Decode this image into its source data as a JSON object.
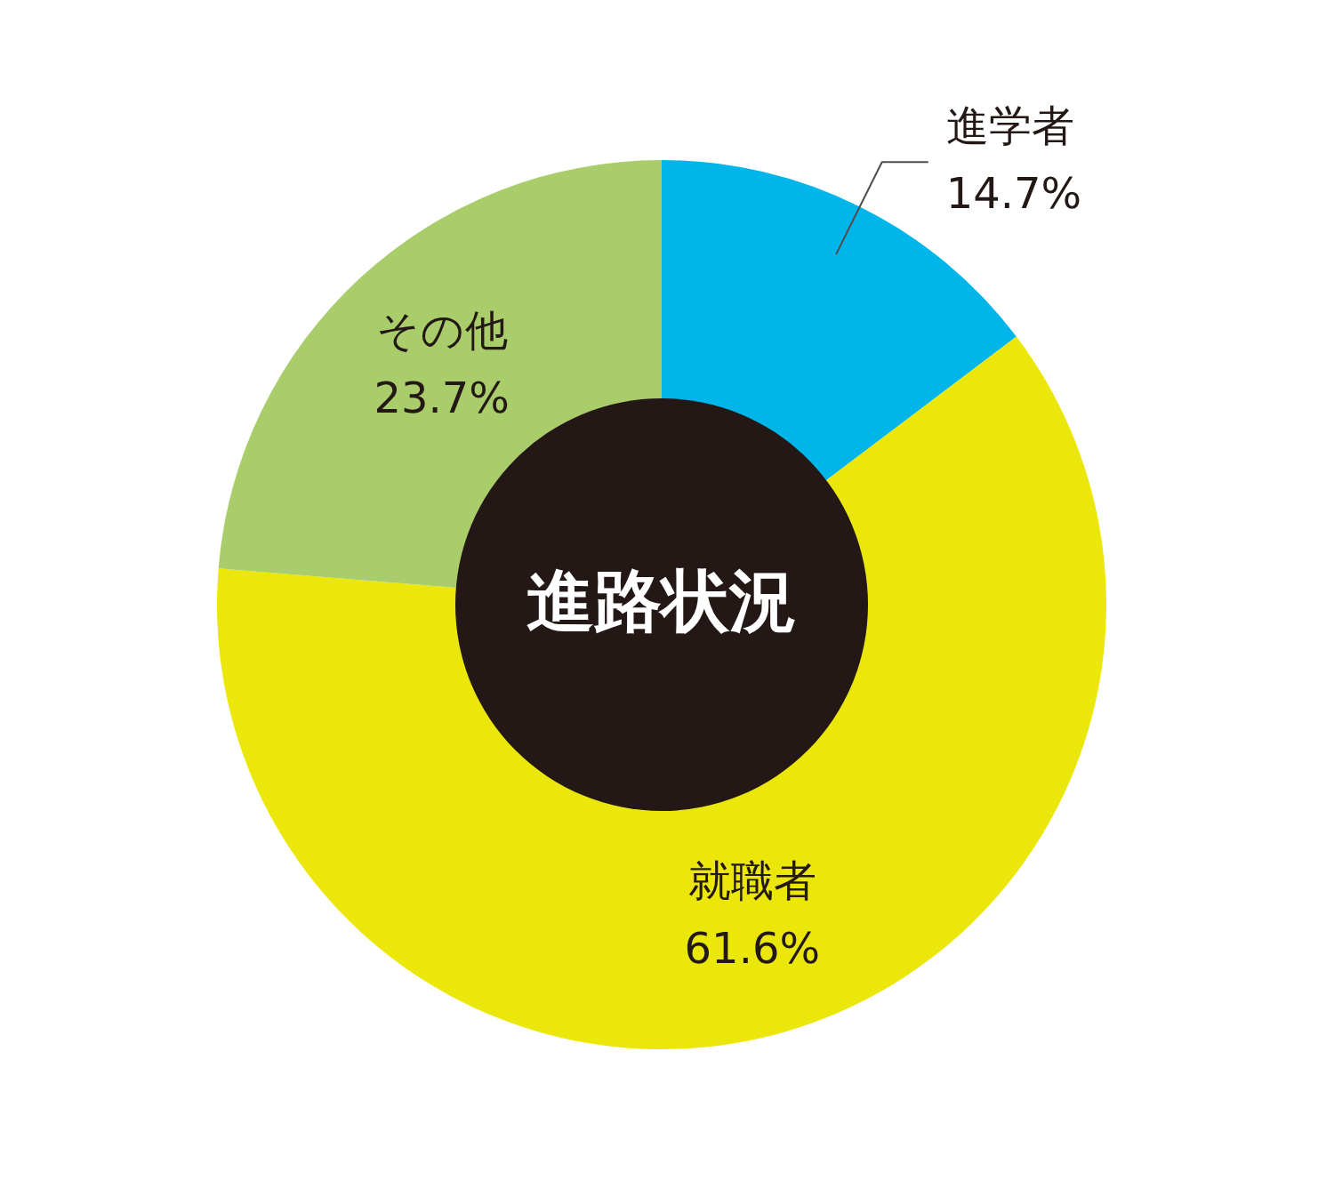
{
  "chart_data": {
    "type": "donut",
    "title": "進路状況",
    "categories": [
      "進学者",
      "就職者",
      "その他"
    ],
    "values": [
      14.7,
      61.6,
      23.7
    ],
    "colors": [
      "#00b5e9",
      "#ece70b",
      "#a9cd6b"
    ],
    "value_labels": [
      "14.7%",
      "61.6%",
      "23.7%"
    ]
  }
}
